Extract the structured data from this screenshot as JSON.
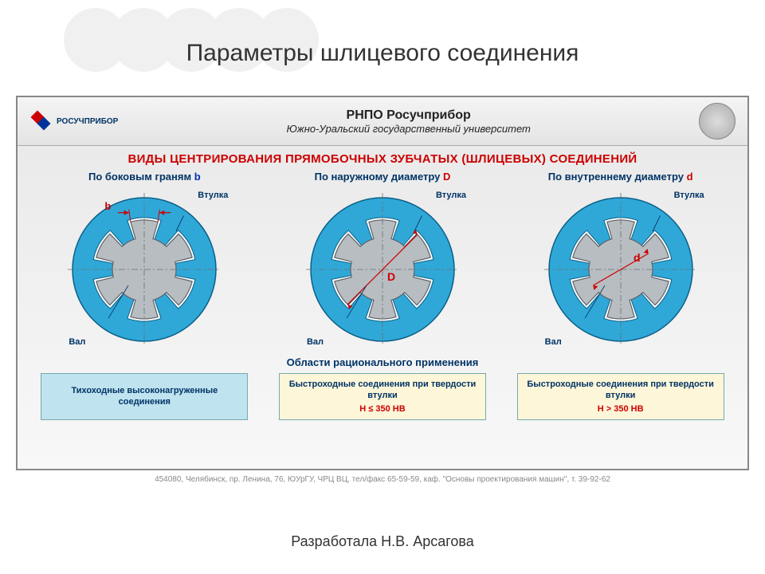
{
  "slide_title": "Параметры шлицевого соединения",
  "header": {
    "logo_text": "РОСУЧПРИБОР",
    "org": "РНПО Росучприбор",
    "univ": "Южно-Уральский государственный университет"
  },
  "red_title": "ВИДЫ ЦЕНТРИРОВАНИЯ ПРЯМОБОЧНЫХ ЗУБЧАТЫХ (ШЛИЦЕВЫХ) СОЕДИНЕНИЙ",
  "columns": [
    {
      "header_prefix": "По боковым граням ",
      "param": "b",
      "param_class": "param-b",
      "vtulka": "Втулка",
      "val": "Вал",
      "dim_label": "b",
      "show_b_arrows": true,
      "show_D_arrow": false,
      "show_d_arrow": false,
      "contact_sides": true,
      "contact_outer": false,
      "contact_inner": false
    },
    {
      "header_prefix": "По наружному диаметру ",
      "param": "D",
      "param_class": "param-D",
      "vtulka": "Втулка",
      "val": "Вал",
      "dim_label": "D",
      "show_b_arrows": false,
      "show_D_arrow": true,
      "show_d_arrow": false,
      "contact_sides": false,
      "contact_outer": true,
      "contact_inner": false
    },
    {
      "header_prefix": "По внутреннему диаметру ",
      "param": "d",
      "param_class": "param-d",
      "vtulka": "Втулка",
      "val": "Вал",
      "dim_label": "d",
      "show_b_arrows": false,
      "show_D_arrow": false,
      "show_d_arrow": true,
      "contact_sides": false,
      "contact_outer": false,
      "contact_inner": true
    }
  ],
  "section_subtitle": "Области рационального применения",
  "app_boxes": [
    {
      "text": "Тихоходные высоконагруженные соединения",
      "cond": "",
      "bg": "#bfe3ef"
    },
    {
      "text": "Быстроходные соединения при твердости втулки",
      "cond": "H ≤ 350 HB",
      "bg": "#fef6d8"
    },
    {
      "text": "Быстроходные соединения при твердости втулки",
      "cond": "H > 350 HB",
      "bg": "#fef6d8"
    }
  ],
  "footer": "454080, Челябинск, пр. Ленина, 76, ЮУрГУ, ЧРЦ ВЦ, тел/факс 65-59-59, каф. \"Основы проектирования машин\", т. 39-92-62",
  "author": "Разработала Н.В. Арсагова",
  "style": {
    "hub_fill": "#2fa8d8",
    "hub_stroke": "#0b5f86",
    "shaft_fill": "#b8bdc2",
    "shaft_stroke": "#5b6166",
    "gap_fill": "#ffffff",
    "center_line": "#6b6f73",
    "outer_radius": 90,
    "spline_outer_r": 62,
    "spline_inner_r": 40,
    "teeth": 6,
    "leader_color": "#0b3a66"
  }
}
